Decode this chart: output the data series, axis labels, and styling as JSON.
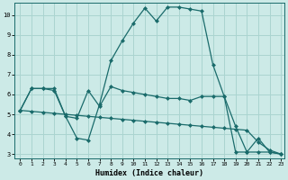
{
  "xlabel": "Humidex (Indice chaleur)",
  "bg_color": "#cceae7",
  "grid_color": "#aad4d0",
  "line_color": "#1a6b6b",
  "xlim": [
    -0.5,
    23.3
  ],
  "ylim": [
    2.8,
    10.6
  ],
  "xticks": [
    0,
    1,
    2,
    3,
    4,
    5,
    6,
    7,
    8,
    9,
    10,
    11,
    12,
    13,
    14,
    15,
    16,
    17,
    18,
    19,
    20,
    21,
    22,
    23
  ],
  "yticks": [
    3,
    4,
    5,
    6,
    7,
    8,
    9,
    10
  ],
  "line1_x": [
    0,
    1,
    2,
    3,
    4,
    5,
    6,
    7,
    8,
    9,
    10,
    11,
    12,
    13,
    14,
    15,
    16,
    17,
    18,
    19,
    20,
    21,
    22,
    23
  ],
  "line1_y": [
    5.2,
    6.3,
    6.3,
    6.3,
    4.9,
    3.8,
    3.7,
    5.5,
    7.7,
    8.7,
    9.6,
    10.35,
    9.7,
    10.4,
    10.4,
    10.3,
    10.2,
    7.5,
    5.9,
    3.1,
    3.1,
    3.8,
    3.1,
    3.0
  ],
  "line2_x": [
    0,
    1,
    2,
    3,
    4,
    5,
    6,
    7,
    8,
    9,
    10,
    11,
    12,
    13,
    14,
    15,
    16,
    17,
    18,
    19,
    20,
    21,
    22,
    23
  ],
  "line2_y": [
    5.2,
    6.3,
    6.3,
    6.2,
    4.9,
    4.8,
    6.2,
    5.4,
    6.4,
    6.2,
    6.1,
    6.0,
    5.9,
    5.8,
    5.8,
    5.7,
    5.9,
    5.9,
    5.9,
    4.4,
    3.1,
    3.1,
    3.1,
    3.0
  ],
  "line3_x": [
    0,
    1,
    2,
    3,
    4,
    5,
    6,
    7,
    8,
    9,
    10,
    11,
    12,
    13,
    14,
    15,
    16,
    17,
    18,
    19,
    20,
    21,
    22,
    23
  ],
  "line3_y": [
    5.2,
    5.15,
    5.1,
    5.05,
    5.0,
    4.95,
    4.9,
    4.85,
    4.8,
    4.75,
    4.7,
    4.65,
    4.6,
    4.55,
    4.5,
    4.45,
    4.4,
    4.35,
    4.3,
    4.25,
    4.2,
    3.6,
    3.2,
    3.0
  ]
}
